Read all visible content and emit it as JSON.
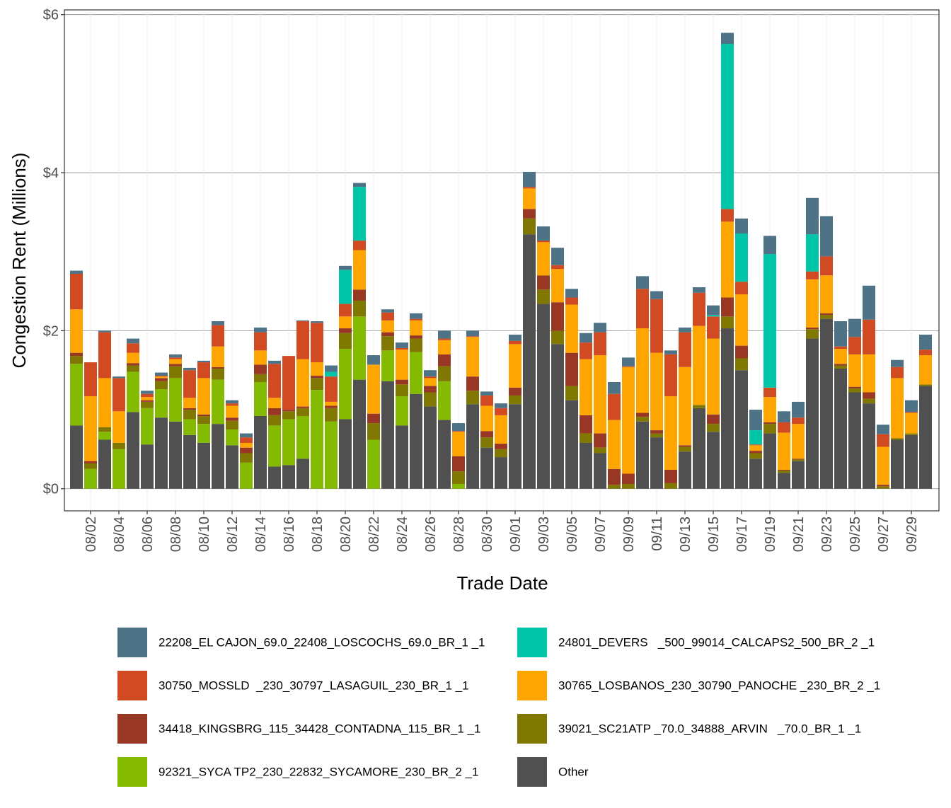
{
  "chart_data": {
    "type": "stacked_bar",
    "xlabel": "Trade Date",
    "ylabel": "Congestion Rent (Millions)",
    "categories": [
      null,
      "08/02",
      null,
      "08/04",
      null,
      "08/06",
      null,
      "08/08",
      null,
      "08/10",
      null,
      "08/12",
      null,
      "08/14",
      null,
      "08/16",
      null,
      "08/18",
      null,
      "08/20",
      null,
      "08/22",
      null,
      "08/24",
      null,
      "08/26",
      null,
      "08/28",
      null,
      "08/30",
      null,
      "09/01",
      null,
      "09/03",
      null,
      "09/05",
      null,
      "09/07",
      null,
      "09/09",
      null,
      "09/11",
      null,
      "09/13",
      null,
      "09/15",
      null,
      "09/17",
      null,
      "09/19",
      null,
      "09/21",
      null,
      "09/23",
      null,
      "09/25",
      null,
      "09/27",
      null,
      "09/29",
      null
    ],
    "ylim": [
      -0.28,
      6.06
    ],
    "yticks": [
      {
        "value": 0,
        "label": "$0"
      },
      {
        "value": 2,
        "label": "$2"
      },
      {
        "value": 4,
        "label": "$4"
      },
      {
        "value": 6,
        "label": "$6"
      }
    ],
    "grid": true,
    "legend": "bottom",
    "series": [
      {
        "name": "22208_EL CAJON_69.0_22408_LOSCOCHS_69.0_BR_1 _1",
        "color": "#4f7386",
        "values": [
          0.04,
          0,
          0.02,
          0.02,
          0.06,
          0.04,
          0.04,
          0.04,
          0.03,
          0.02,
          0.05,
          0.04,
          0.05,
          0.06,
          0.04,
          0,
          0.01,
          0.02,
          0.08,
          0.05,
          0.05,
          0.12,
          0.04,
          0.07,
          0.07,
          0.08,
          0.1,
          0.1,
          0.07,
          0.05,
          0.06,
          0.08,
          0.19,
          0.18,
          0.22,
          0.11,
          0.12,
          0.12,
          0.15,
          0.11,
          0.16,
          0.1,
          0.05,
          0.06,
          0.07,
          0.12,
          0.14,
          0.19,
          0.26,
          0.23,
          0.14,
          0.2,
          0.46,
          0.51,
          0.32,
          0.23,
          0.43,
          0.12,
          0.09,
          0.15,
          0.19
        ]
      },
      {
        "name": "24801_DEVERS   _500_99014_CALCAPS2_500_BR_2 _1",
        "color": "#00c5a8",
        "values": [
          0,
          0,
          0,
          0,
          0,
          0,
          0,
          0,
          0,
          0,
          0,
          0,
          0,
          0,
          0,
          0,
          0,
          0,
          0.06,
          0.43,
          0.68,
          0,
          0,
          0,
          0,
          0,
          0,
          0,
          0,
          0,
          0,
          0,
          0,
          0,
          0,
          0,
          0,
          0,
          0,
          0,
          0,
          0,
          0,
          0,
          0,
          0.02,
          2.09,
          0.61,
          0.18,
          1.69,
          0,
          0,
          0.47,
          0,
          0,
          0,
          0,
          0,
          0,
          0,
          0
        ]
      },
      {
        "name": "30750_MOSSLD  _230_30797_LASAGUIL_230_BR_1 _1",
        "color": "#d14a22",
        "values": [
          0.45,
          0.43,
          0.58,
          0.42,
          0.12,
          0.04,
          0.01,
          0.02,
          0.35,
          0.2,
          0.27,
          0.03,
          0.07,
          0.23,
          0.43,
          0.68,
          0.48,
          0.5,
          0.32,
          0.16,
          0.12,
          0,
          0.1,
          0.02,
          0.02,
          0.02,
          0.02,
          0.01,
          0.01,
          0.13,
          0.09,
          0.04,
          0.02,
          0.02,
          0.05,
          0.09,
          0.21,
          0.29,
          0.33,
          0.01,
          0.5,
          0.68,
          0.53,
          0.44,
          0.42,
          0.28,
          0.16,
          0.16,
          0.01,
          0.12,
          0.13,
          0.08,
          0.1,
          0.24,
          0.03,
          0.22,
          0.44,
          0.16,
          0.14,
          0.01,
          0.07
        ]
      },
      {
        "name": "30765_LOSBANOS_230_30790_PANOCHE _230_BR_2 _1",
        "color": "#ffa500",
        "values": [
          0.55,
          0.82,
          0.62,
          0.4,
          0.13,
          0.04,
          0.02,
          0.06,
          0.13,
          0.46,
          0.26,
          0.15,
          0.06,
          0.18,
          0.13,
          0,
          0.6,
          0.17,
          0.05,
          0.15,
          0.5,
          0.62,
          0.15,
          0.38,
          0.19,
          0.1,
          0.18,
          0.31,
          0.5,
          0.32,
          0.36,
          0.55,
          0.26,
          0.42,
          0.42,
          0.61,
          0.71,
          0.99,
          0.62,
          1.35,
          1.07,
          0.98,
          0.93,
          0.99,
          1.0,
          0.96,
          0.96,
          0.65,
          0.07,
          0.32,
          0.47,
          0.44,
          0.61,
          0.48,
          0.19,
          0.41,
          0.48,
          0.48,
          0.76,
          0.26,
          0.37
        ]
      },
      {
        "name": "34418_KINGSBRG_115_34428_CONTADNA_115_BR_1 _1",
        "color": "#983824",
        "values": [
          0.04,
          0.03,
          0,
          0,
          0.03,
          0.02,
          0.04,
          0.03,
          0.02,
          0.02,
          0.02,
          0.04,
          0.07,
          0.12,
          0.09,
          0.02,
          0.02,
          0.03,
          0.03,
          0.06,
          0.14,
          0.12,
          0.05,
          0.06,
          0.04,
          0.08,
          0.15,
          0.19,
          0.18,
          0.08,
          0.07,
          0.1,
          0.12,
          0.18,
          0.36,
          0.42,
          0.23,
          0.18,
          0.2,
          0.13,
          0.05,
          0.04,
          0.17,
          0.02,
          0,
          0.12,
          0.24,
          0.16,
          0.03,
          0.02,
          0.01,
          0.01,
          0.02,
          0.02,
          0.02,
          0.02,
          0.08,
          0.02,
          0,
          0,
          0
        ]
      },
      {
        "name": "39021_SC21ATP _70.0_34888_ARVIN   _70.0_BR_1 _1",
        "color": "#807800",
        "values": [
          0.1,
          0.07,
          0.06,
          0.08,
          0.08,
          0.08,
          0.1,
          0.15,
          0.12,
          0.1,
          0.14,
          0.11,
          0.12,
          0.1,
          0.13,
          0.1,
          0.1,
          0.15,
          0.17,
          0.2,
          0.2,
          0.21,
          0.18,
          0.15,
          0.17,
          0.18,
          0.19,
          0.16,
          0.17,
          0.13,
          0.1,
          0.11,
          0.2,
          0.18,
          0.17,
          0.18,
          0.12,
          0.07,
          0.05,
          0.06,
          0.06,
          0.05,
          0.07,
          0.06,
          0.04,
          0.1,
          0.15,
          0.15,
          0.07,
          0.12,
          0.03,
          0.02,
          0.12,
          0.05,
          0.04,
          0.05,
          0.06,
          0.03,
          0.02,
          0.02,
          0.02
        ]
      },
      {
        "name": "92321_SYCA TP2_230_22832_SYCAMORE_230_BR_2 _1",
        "color": "#84bb00",
        "values": [
          0.78,
          0.25,
          0.1,
          0.5,
          0.51,
          0.46,
          0.36,
          0.55,
          0.2,
          0.24,
          0.56,
          0.2,
          0.33,
          0.43,
          0.52,
          0.58,
          0.54,
          1.25,
          0.85,
          0.89,
          0.8,
          0.62,
          0.39,
          0.37,
          0.53,
          0,
          0.49,
          0.06,
          0,
          0,
          0,
          0,
          0,
          0,
          0,
          0,
          0,
          0,
          0,
          0,
          0,
          0,
          0,
          0,
          0,
          0,
          0,
          0,
          0,
          0,
          0,
          0,
          0,
          0,
          0,
          0,
          0,
          0,
          0,
          0,
          0
        ]
      },
      {
        "name": "Other",
        "color": "#505050",
        "values": [
          0.8,
          0,
          0.62,
          0,
          0.97,
          0.56,
          0.9,
          0.85,
          0.68,
          0.58,
          0.82,
          0.55,
          0,
          0.92,
          0.28,
          0.3,
          0.38,
          0,
          0,
          0.88,
          1.38,
          0,
          1.36,
          0.8,
          1.2,
          1.04,
          0.87,
          0,
          1.07,
          0.52,
          0.4,
          1.07,
          3.22,
          2.34,
          1.83,
          1.12,
          0.58,
          0.45,
          0,
          0,
          0.85,
          0.65,
          0,
          0.47,
          1.02,
          0.72,
          2.03,
          1.5,
          0.38,
          0.7,
          0.2,
          0.35,
          1.9,
          2.15,
          1.52,
          1.22,
          1.08,
          0,
          0.62,
          0.68,
          1.3
        ]
      }
    ]
  }
}
